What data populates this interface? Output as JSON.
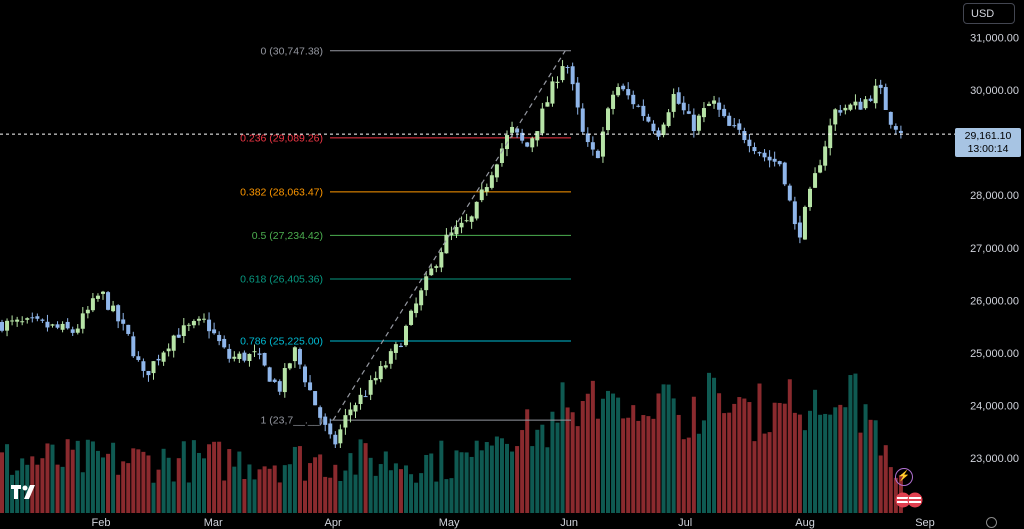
{
  "currency_button": "USD",
  "last_price": {
    "value": "29,161.10",
    "countdown": "13:00:14"
  },
  "chart_data": {
    "type": "candlestick",
    "price_axis": {
      "range": [
        22400,
        31400
      ],
      "ticks": [
        "31,000.00",
        "30,000.00",
        "29,000.00",
        "28,000.00",
        "27,000.00",
        "26,000.00",
        "25,000.00",
        "24,000.00",
        "23,000.00"
      ],
      "tick_values": [
        31000,
        30000,
        29000,
        28000,
        27000,
        26000,
        25000,
        24000,
        23000
      ]
    },
    "time_axis": {
      "labels": [
        "Feb",
        "Mar",
        "Apr",
        "May",
        "Jun",
        "Jul",
        "Aug",
        "Sep"
      ],
      "label_dates": [
        "2024-02-01",
        "2024-03-01",
        "2024-04-01",
        "2024-05-01",
        "2024-06-01",
        "2024-07-01",
        "2024-08-01",
        "2024-09-01"
      ]
    },
    "fibonacci": [
      {
        "label": "0 (30,747.38)",
        "value": 30747.38,
        "color": "#9598a1"
      },
      {
        "label": "0.236 (29,089.26)",
        "value": 29089.26,
        "color": "#f23645"
      },
      {
        "label": "0.382 (28,063.47)",
        "value": 28063.47,
        "color": "#ff9800"
      },
      {
        "label": "0.5 (27,234.42)",
        "value": 27234.42,
        "color": "#4caf50"
      },
      {
        "label": "0.618 (26,405.36)",
        "value": 26405.36,
        "color": "#089981"
      },
      {
        "label": "0.786 (25,225.00)",
        "value": 25225.0,
        "color": "#00bcd4"
      },
      {
        "label": "1 (23,7__.__)",
        "value": 23720,
        "color": "#9598a1"
      }
    ],
    "trend_line": {
      "from": {
        "date": "2024-04-01",
        "price": 23720
      },
      "to": {
        "date": "2024-05-31",
        "price": 30747.38
      }
    },
    "keypoints": [
      {
        "date": "2024-01-15",
        "price": 25550
      },
      {
        "date": "2024-01-25",
        "price": 25400
      },
      {
        "date": "2024-02-01",
        "price": 26150
      },
      {
        "date": "2024-02-08",
        "price": 25300
      },
      {
        "date": "2024-02-12",
        "price": 24550
      },
      {
        "date": "2024-02-20",
        "price": 25350
      },
      {
        "date": "2024-02-28",
        "price": 25600
      },
      {
        "date": "2024-03-05",
        "price": 24900
      },
      {
        "date": "2024-03-12",
        "price": 24950
      },
      {
        "date": "2024-03-18",
        "price": 24300
      },
      {
        "date": "2024-03-22",
        "price": 25050
      },
      {
        "date": "2024-03-28",
        "price": 23900
      },
      {
        "date": "2024-04-01",
        "price": 23200
      },
      {
        "date": "2024-04-05",
        "price": 23900
      },
      {
        "date": "2024-04-10",
        "price": 24300
      },
      {
        "date": "2024-04-18",
        "price": 25150
      },
      {
        "date": "2024-04-23",
        "price": 26000
      },
      {
        "date": "2024-04-30",
        "price": 27150
      },
      {
        "date": "2024-05-07",
        "price": 27550
      },
      {
        "date": "2024-05-13",
        "price": 28650
      },
      {
        "date": "2024-05-17",
        "price": 29250
      },
      {
        "date": "2024-05-21",
        "price": 28900
      },
      {
        "date": "2024-05-24",
        "price": 29350
      },
      {
        "date": "2024-05-31",
        "price": 30650
      },
      {
        "date": "2024-06-05",
        "price": 29000
      },
      {
        "date": "2024-06-08",
        "price": 28700
      },
      {
        "date": "2024-06-13",
        "price": 30100
      },
      {
        "date": "2024-06-18",
        "price": 29750
      },
      {
        "date": "2024-06-24",
        "price": 29200
      },
      {
        "date": "2024-06-28",
        "price": 29900
      },
      {
        "date": "2024-07-03",
        "price": 29300
      },
      {
        "date": "2024-07-08",
        "price": 29800
      },
      {
        "date": "2024-07-12",
        "price": 29300
      },
      {
        "date": "2024-07-17",
        "price": 29100
      },
      {
        "date": "2024-07-22",
        "price": 28700
      },
      {
        "date": "2024-07-26",
        "price": 28600
      },
      {
        "date": "2024-07-30",
        "price": 27150
      },
      {
        "date": "2024-08-05",
        "price": 28700
      },
      {
        "date": "2024-08-09",
        "price": 29650
      },
      {
        "date": "2024-08-15",
        "price": 29700
      },
      {
        "date": "2024-08-20",
        "price": 30050
      },
      {
        "date": "2024-08-23",
        "price": 29450
      },
      {
        "date": "2024-08-27",
        "price": 29161
      }
    ]
  }
}
